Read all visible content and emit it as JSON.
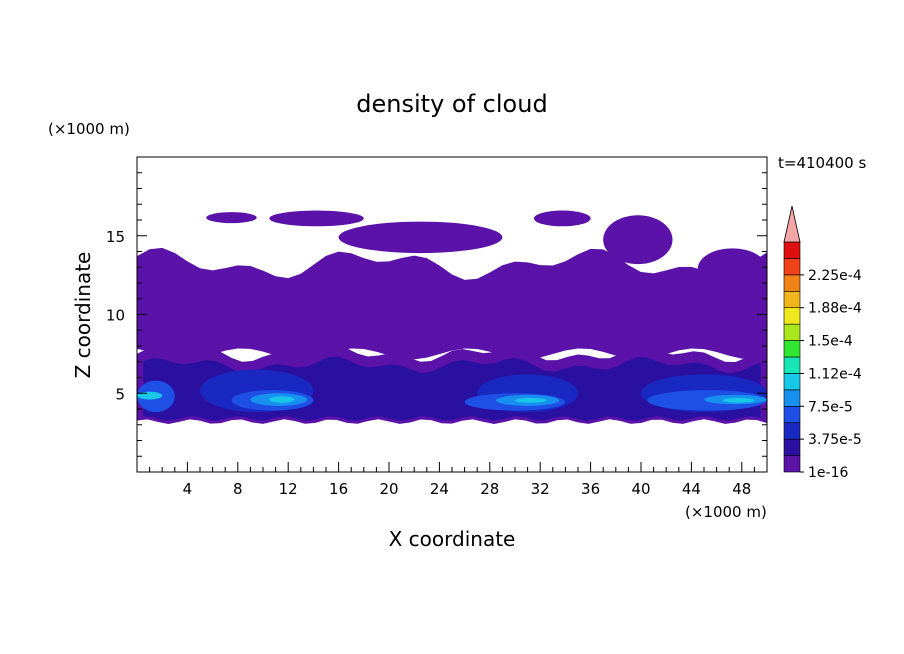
{
  "chart_data": {
    "type": "heatmap",
    "title": "density of cloud",
    "xlabel": "X coordinate",
    "ylabel": "Z coordinate",
    "x_unit_label": "(×1000 m)",
    "y_unit_label": "(×1000 m)",
    "time_label": "t=410400 s",
    "xlim": [
      0,
      50
    ],
    "ylim": [
      0,
      20
    ],
    "x_ticks": [
      4,
      8,
      12,
      16,
      20,
      24,
      28,
      32,
      36,
      40,
      44,
      48
    ],
    "y_ticks": [
      5,
      10,
      15
    ],
    "colorbar": {
      "labels": [
        "1e-16",
        "3.75e-5",
        "7.5e-5",
        "1.12e-4",
        "1.5e-4",
        "1.88e-4",
        "2.25e-4"
      ],
      "levels": [
        1e-16,
        1.875e-05,
        3.75e-05,
        5.625e-05,
        7.5e-05,
        9.375e-05,
        0.0001125,
        0.00013125,
        0.00015,
        0.00016875,
        0.0001875,
        0.00020625,
        0.000225,
        0.00024375
      ],
      "colors": [
        "#5a12a8",
        "#2a10a0",
        "#1828c0",
        "#1e50e6",
        "#1890f0",
        "#18c8e6",
        "#18e6b4",
        "#30e630",
        "#a8e61e",
        "#f0e61e",
        "#f0b41e",
        "#f08218",
        "#f04018",
        "#e01010"
      ],
      "extend_color": "#f4a6a6"
    },
    "regions": [
      {
        "level": 0,
        "x": [
          0,
          50
        ],
        "z": [
          3.2,
          7.5
        ],
        "shape": "band"
      },
      {
        "level": 0,
        "x": [
          0,
          50
        ],
        "z": [
          7.5,
          13.8
        ],
        "shape": "upper-layer"
      },
      {
        "level": 0,
        "x": [
          5.5,
          9.5
        ],
        "z": [
          15.8,
          16.5
        ],
        "shape": "blob"
      },
      {
        "level": 0,
        "x": [
          10.5,
          18
        ],
        "z": [
          15.6,
          16.6
        ],
        "shape": "blob"
      },
      {
        "level": 0,
        "x": [
          16,
          29
        ],
        "z": [
          13.9,
          15.9
        ],
        "shape": "blob"
      },
      {
        "level": 0,
        "x": [
          31.5,
          36
        ],
        "z": [
          15.6,
          16.6
        ],
        "shape": "blob"
      },
      {
        "level": 0,
        "x": [
          37,
          42.5
        ],
        "z": [
          13.2,
          16.3
        ],
        "shape": "blob"
      },
      {
        "level": 0,
        "x": [
          44.5,
          50
        ],
        "z": [
          11.6,
          14.2
        ],
        "shape": "blob"
      },
      {
        "level": 1,
        "x": [
          0.5,
          49.5
        ],
        "z": [
          3.4,
          6.8
        ],
        "shape": "band"
      },
      {
        "level": 2,
        "x": [
          5,
          14
        ],
        "z": [
          3.8,
          6.5
        ],
        "shape": "blob"
      },
      {
        "level": 2,
        "x": [
          27,
          35
        ],
        "z": [
          3.8,
          6.2
        ],
        "shape": "blob"
      },
      {
        "level": 2,
        "x": [
          40,
          50
        ],
        "z": [
          3.8,
          6.2
        ],
        "shape": "blob"
      },
      {
        "level": 3,
        "x": [
          0,
          3
        ],
        "z": [
          3.8,
          5.8
        ],
        "shape": "blob"
      },
      {
        "level": 3,
        "x": [
          7.5,
          14
        ],
        "z": [
          3.9,
          5.2
        ],
        "shape": "blob"
      },
      {
        "level": 3,
        "x": [
          26,
          34
        ],
        "z": [
          3.9,
          5.0
        ],
        "shape": "blob"
      },
      {
        "level": 3,
        "x": [
          40.5,
          50
        ],
        "z": [
          3.9,
          5.2
        ],
        "shape": "blob"
      },
      {
        "level": 4,
        "x": [
          9,
          13.5
        ],
        "z": [
          4.2,
          5.0
        ],
        "shape": "blob"
      },
      {
        "level": 4,
        "x": [
          28.5,
          33.5
        ],
        "z": [
          4.2,
          4.9
        ],
        "shape": "blob"
      },
      {
        "level": 4,
        "x": [
          45,
          50
        ],
        "z": [
          4.3,
          4.9
        ],
        "shape": "blob"
      },
      {
        "level": 5,
        "x": [
          0,
          2
        ],
        "z": [
          4.6,
          5.1
        ],
        "shape": "blob"
      },
      {
        "level": 5,
        "x": [
          10.5,
          12.5
        ],
        "z": [
          4.4,
          4.8
        ],
        "shape": "blob"
      },
      {
        "level": 5,
        "x": [
          30,
          32.5
        ],
        "z": [
          4.4,
          4.7
        ],
        "shape": "blob"
      },
      {
        "level": 5,
        "x": [
          46.5,
          49
        ],
        "z": [
          4.4,
          4.7
        ],
        "shape": "blob"
      }
    ]
  }
}
